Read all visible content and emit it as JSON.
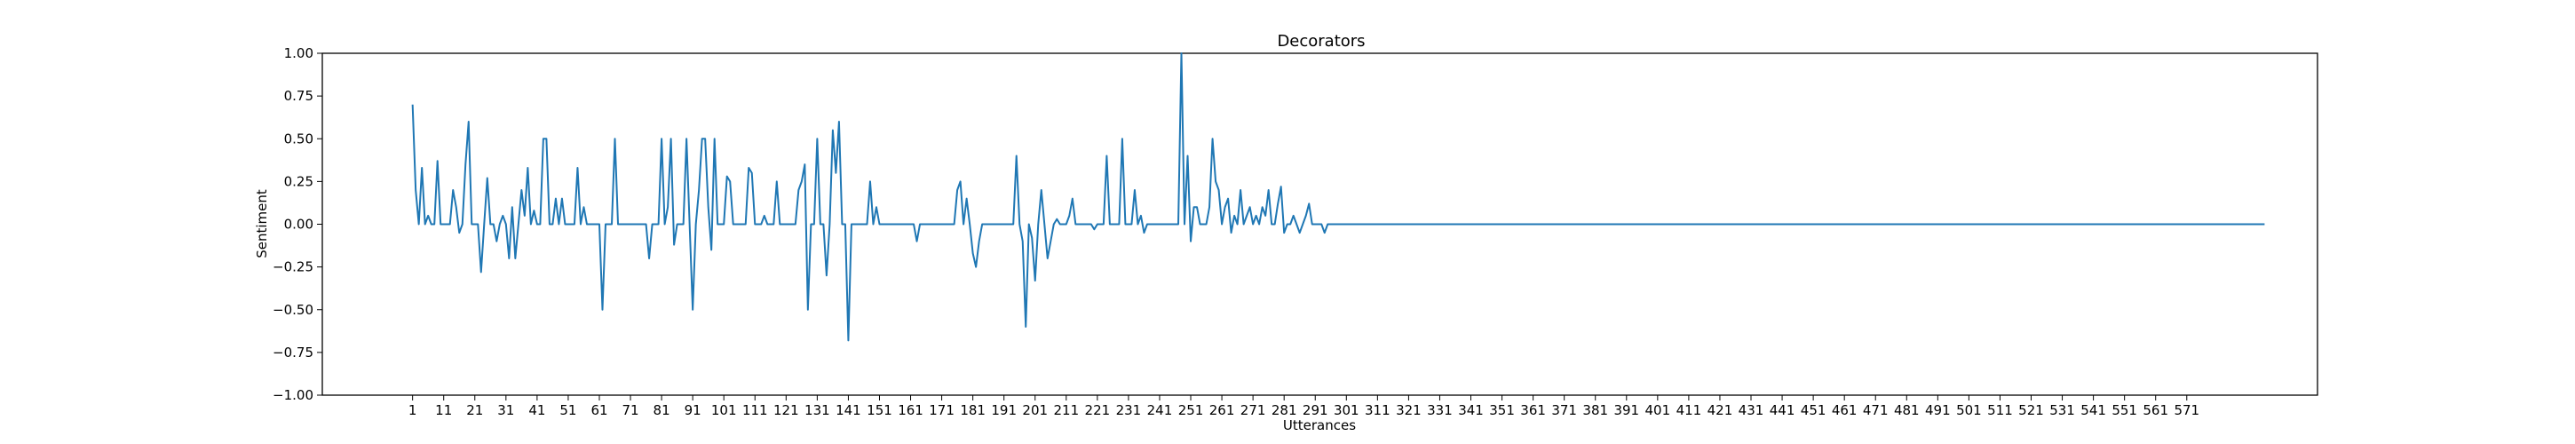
{
  "chart_data": {
    "type": "line",
    "title": "Decorators",
    "xlabel": "Utterances",
    "ylabel": "Sentiment",
    "xlim": [
      -28,
      613
    ],
    "ylim": [
      -1.0,
      1.0
    ],
    "x_start": 1,
    "x_ticks": [
      1,
      11,
      21,
      31,
      41,
      51,
      61,
      71,
      81,
      91,
      101,
      111,
      121,
      131,
      141,
      151,
      161,
      171,
      181,
      191,
      201,
      211,
      221,
      231,
      241,
      251,
      261,
      271,
      281,
      291,
      301,
      311,
      321,
      331,
      341,
      351,
      361,
      371,
      381,
      391,
      401,
      411,
      421,
      431,
      441,
      451,
      461,
      471,
      481,
      491,
      501,
      511,
      521,
      531,
      541,
      551,
      561,
      571
    ],
    "y_ticks": [
      "1.00",
      "0.75",
      "0.50",
      "0.25",
      "0.00",
      "−0.25",
      "−0.50",
      "−0.75",
      "−1.00"
    ],
    "grid": false,
    "line_color": "#1f77b4",
    "series": [
      {
        "values": [
          0.7,
          0.2,
          0.0,
          0.33,
          0.0,
          0.05,
          0.0,
          0.0,
          0.37,
          0.0,
          0.0,
          0.0,
          0.0,
          0.2,
          0.1,
          -0.05,
          0.0,
          0.35,
          0.6,
          0.0,
          0.0,
          0.0,
          -0.28,
          0.0,
          0.27,
          0.0,
          0.0,
          -0.1,
          0.0,
          0.05,
          0.0,
          -0.2,
          0.1,
          -0.2,
          0.0,
          0.2,
          0.05,
          0.33,
          0.0,
          0.08,
          0.0,
          0.0,
          0.5,
          0.5,
          0.0,
          0.0,
          0.15,
          0.0,
          0.15,
          0.0,
          0.0,
          0.0,
          0.0,
          0.33,
          0.0,
          0.1,
          0.0,
          0.0,
          0.0,
          0.0,
          0.0,
          -0.5,
          0.0,
          0.0,
          0.0,
          0.5,
          0.0,
          0.0,
          0.0,
          0.0,
          0.0,
          0.0,
          0.0,
          0.0,
          0.0,
          0.0,
          -0.2,
          0.0,
          0.0,
          0.0,
          0.5,
          0.0,
          0.1,
          0.5,
          -0.12,
          0.0,
          0.0,
          0.0,
          0.5,
          0.0,
          -0.5,
          0.0,
          0.2,
          0.5,
          0.5,
          0.1,
          -0.15,
          0.5,
          0.0,
          0.0,
          0.0,
          0.28,
          0.25,
          0.0,
          0.0,
          0.0,
          0.0,
          0.0,
          0.33,
          0.3,
          0.0,
          0.0,
          0.0,
          0.05,
          0.0,
          0.0,
          0.0,
          0.25,
          0.0,
          0.0,
          0.0,
          0.0,
          0.0,
          0.0,
          0.2,
          0.25,
          0.35,
          -0.5,
          0.0,
          0.0,
          0.5,
          0.0,
          0.0,
          -0.3,
          0.0,
          0.55,
          0.3,
          0.6,
          0.0,
          0.0,
          -0.68,
          0.0,
          0.0,
          0.0,
          0.0,
          0.0,
          0.0,
          0.25,
          0.0,
          0.1,
          0.0,
          0.0,
          0.0,
          0.0,
          0.0,
          0.0,
          0.0,
          0.0,
          0.0,
          0.0,
          0.0,
          0.0,
          -0.1,
          0.0,
          0.0,
          0.0,
          0.0,
          0.0,
          0.0,
          0.0,
          0.0,
          0.0,
          0.0,
          0.0,
          0.0,
          0.2,
          0.25,
          0.0,
          0.15,
          0.0,
          -0.17,
          -0.25,
          -0.1,
          0.0,
          0.0,
          0.0,
          0.0,
          0.0,
          0.0,
          0.0,
          0.0,
          0.0,
          0.0,
          0.0,
          0.4,
          0.0,
          -0.1,
          -0.6,
          0.0,
          -0.08,
          -0.33,
          0.0,
          0.2,
          0.0,
          -0.2,
          -0.1,
          0.0,
          0.03,
          0.0,
          0.0,
          0.0,
          0.05,
          0.15,
          0.0,
          0.0,
          0.0,
          0.0,
          0.0,
          0.0,
          -0.03,
          0.0,
          0.0,
          0.0,
          0.4,
          0.0,
          0.0,
          0.0,
          0.0,
          0.5,
          0.0,
          0.0,
          0.0,
          0.2,
          0.0,
          0.05,
          -0.05,
          0.0,
          0.0,
          0.0,
          0.0,
          0.0,
          0.0,
          0.0,
          0.0,
          0.0,
          0.0,
          0.0,
          1.0,
          0.0,
          0.4,
          -0.1,
          0.1,
          0.1,
          0.0,
          0.0,
          0.0,
          0.1,
          0.5,
          0.25,
          0.2,
          0.0,
          0.1,
          0.15,
          -0.05,
          0.05,
          0.0,
          0.2,
          0.0,
          0.05,
          0.1,
          0.0,
          0.05,
          0.0,
          0.1,
          0.05,
          0.2,
          0.0,
          0.0,
          0.12,
          0.22,
          -0.05,
          0.0,
          0.0,
          0.05,
          0.0,
          -0.05,
          0.0,
          0.05,
          0.12,
          0.0,
          0.0,
          0.0,
          0.0,
          -0.05,
          0.0,
          0.0,
          0.0,
          0.0,
          0.0,
          0.0,
          0.0,
          0.0,
          0.0,
          0.0,
          0.0,
          0.0,
          0.0,
          0.0,
          0.0,
          0.0,
          0.0,
          0.0,
          0.0,
          0.0,
          0.0,
          0.0,
          0.0,
          0.0,
          0.0,
          0.0,
          0.0,
          0.0,
          0.0,
          0.0,
          0.0,
          0.0,
          0.0,
          0.0,
          0.0,
          0.0,
          0.0,
          0.0,
          0.0,
          0.0,
          0.0,
          0.0,
          0.0,
          0.0,
          0.0,
          0.0,
          0.0,
          0.0,
          0.0,
          0.0,
          0.0,
          0.0,
          0.0,
          0.0,
          0.0,
          0.0,
          0.0,
          0.0,
          0.0,
          0.0,
          0.0,
          0.0,
          0.0,
          0.0,
          0.0,
          0.0,
          0.0,
          0.0,
          0.0,
          0.0,
          0.0,
          0.0,
          0.0,
          0.0,
          0.0,
          0.0,
          0.0,
          0.0,
          0.0,
          0.0,
          0.0,
          0.0,
          0.0,
          0.0,
          0.0,
          0.0,
          0.0,
          0.0,
          0.0,
          0.0,
          0.0,
          0.0,
          0.0,
          0.0,
          0.0,
          0.0,
          0.0,
          0.0,
          0.0,
          0.0,
          0.0,
          0.0,
          0.0,
          0.0,
          0.0,
          0.0,
          0.0,
          0.0,
          0.0,
          0.0,
          0.0,
          0.0,
          0.0,
          0.0,
          0.0,
          0.0,
          0.0,
          0.0,
          0.0,
          0.0,
          0.0,
          0.0,
          0.0,
          0.0,
          0.0,
          0.0,
          0.0,
          0.0,
          0.0,
          0.0,
          0.0,
          0.0,
          0.0,
          0.0,
          0.0,
          0.0,
          0.0,
          0.0,
          0.0,
          0.0,
          0.0,
          0.0,
          0.0,
          0.0,
          0.0,
          0.0,
          0.0,
          0.0,
          0.0,
          0.0,
          0.0,
          0.0,
          0.0,
          0.0,
          0.0,
          0.0,
          0.0,
          0.0,
          0.0,
          0.0,
          0.0,
          0.0,
          0.0,
          0.0,
          0.0,
          0.0,
          0.0,
          0.0,
          0.0,
          0.0,
          0.0,
          0.0,
          0.0,
          0.0,
          0.0,
          0.0,
          0.0,
          0.0,
          0.0,
          0.0,
          0.0,
          0.0,
          0.0,
          0.0,
          0.0,
          0.0,
          0.0,
          0.0,
          0.0,
          0.0,
          0.0,
          0.0,
          0.0,
          0.0,
          0.0,
          0.0,
          0.0,
          0.0,
          0.0,
          0.0,
          0.0,
          0.0,
          0.0,
          0.0,
          0.0,
          0.0,
          0.0,
          0.0,
          0.0,
          0.0,
          0.0,
          0.0,
          0.0,
          0.0,
          0.0,
          0.0,
          0.0,
          0.0,
          0.0,
          0.0,
          0.0,
          0.0,
          0.0,
          0.0,
          0.0,
          0.0,
          0.0,
          0.0,
          0.0,
          0.0,
          0.0,
          0.0,
          0.0,
          0.0,
          0.0,
          0.0,
          0.0,
          0.0,
          0.0,
          0.0,
          0.0,
          0.0,
          0.0,
          0.0,
          0.0,
          0.0,
          0.0,
          0.0,
          0.0,
          0.0,
          0.0,
          0.0,
          0.0,
          0.0,
          0.0,
          0.0,
          0.0,
          0.0,
          0.0,
          0.0,
          0.0,
          0.0,
          0.0,
          0.0,
          0.0,
          0.0,
          0.0,
          0.0,
          0.0,
          0.0,
          0.0,
          0.0,
          0.0,
          0.0,
          0.0,
          0.0,
          0.0,
          0.0,
          0.0,
          0.0,
          0.0,
          0.0,
          0.0,
          0.0,
          0.0,
          0.0,
          0.0,
          0.0,
          0.0,
          0.0,
          0.0,
          0.0,
          0.0,
          0.0,
          0.0,
          0.0,
          0.0,
          0.0,
          0.0,
          0.0,
          0.0,
          0.0
        ]
      }
    ]
  }
}
